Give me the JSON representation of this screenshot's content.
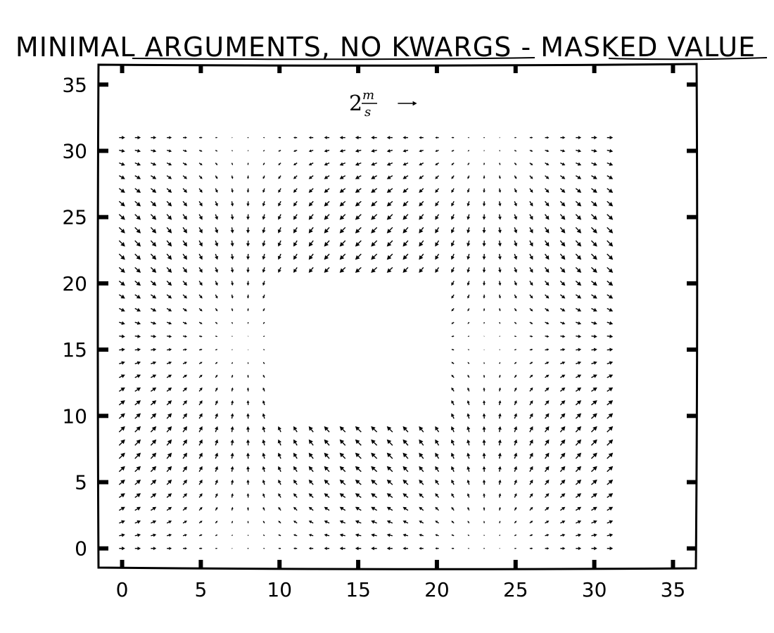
{
  "chart_data": {
    "type": "quiver",
    "title": "MINIMAL ARGUMENTS, NO KWARGS - MASKED VALUE",
    "xlim": [
      -1.5,
      36.5
    ],
    "ylim": [
      -1.5,
      36.5
    ],
    "xticks": [
      0,
      5,
      10,
      15,
      20,
      25,
      30,
      35
    ],
    "yticks": [
      0,
      5,
      10,
      15,
      20,
      25,
      30,
      35
    ],
    "xtick_labels": [
      "0",
      "5",
      "10",
      "15",
      "20",
      "25",
      "30",
      "35"
    ],
    "ytick_labels": [
      "0",
      "5",
      "10",
      "15",
      "20",
      "25",
      "30",
      "35"
    ],
    "grid": {
      "x_range": [
        0,
        31
      ],
      "y_range": [
        0,
        31
      ],
      "step": 1,
      "field": "U = cos(2*pi*x/31), V = sin(2*pi*y/31)"
    },
    "masked_region": {
      "x": [
        10,
        20
      ],
      "y": [
        10,
        20
      ]
    },
    "quiverkey": {
      "label": "2",
      "label_unit_numerator": "m",
      "label_unit_denominator": "s",
      "value": 2,
      "position": "top-center"
    },
    "grid_lines": false,
    "legend": "none"
  },
  "colors": {
    "ink": "#000000",
    "background": "#ffffff"
  }
}
